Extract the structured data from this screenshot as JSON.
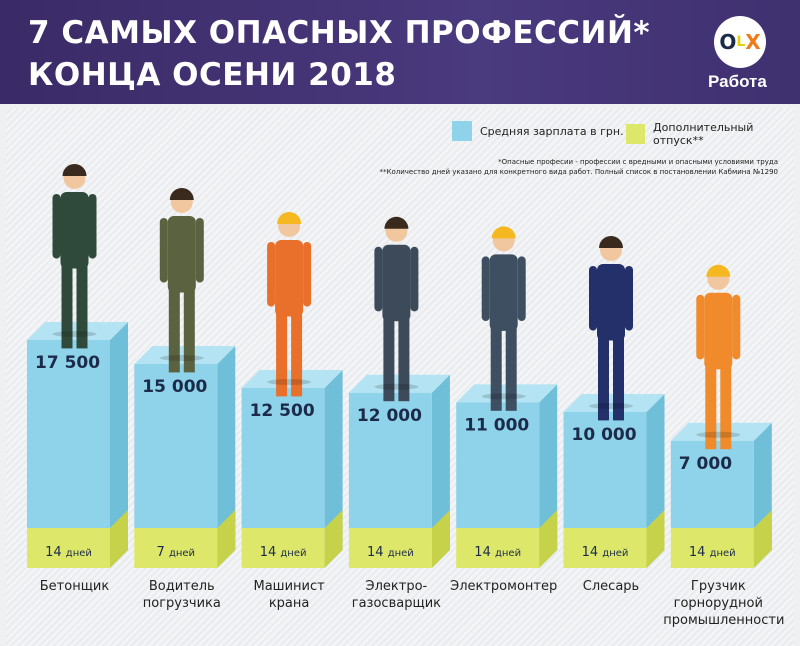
{
  "header": {
    "title_line1": "7 САМЫХ ОПАСНЫХ ПРОФЕССИЙ*",
    "title_line2": "КОНЦА ОСЕНИ 2018",
    "logo_o": "O",
    "logo_l": "L",
    "logo_x": "X",
    "logo_sub": "Работа"
  },
  "legend": {
    "salary": "Средняя зарплата в грн.",
    "vacation": "Дополнительный отпуск**"
  },
  "notes": {
    "n1": "*Опасные професии - професcии с вредными и опасными условиями труда",
    "n2": "**Количество дней указано для конкретного вида работ. Полный список в постановлении Кабмина №1290"
  },
  "colors": {
    "salary": "#8ed3ea",
    "vacation": "#dde86a"
  },
  "chart_data": {
    "type": "bar",
    "categories": [
      "Бетонщик",
      "Водитель погрузчика",
      "Машинист крана",
      "Электро-газосварщик",
      "Электромонтер",
      "Слесарь",
      "Грузчик горнорудной промышленности"
    ],
    "series": [
      {
        "name": "Средняя зарплата в грн.",
        "values": [
          17500,
          15000,
          12500,
          12000,
          11000,
          10000,
          7000
        ],
        "labels": [
          "17 500",
          "15 000",
          "12 500",
          "12 000",
          "11 000",
          "10 000",
          "7 000"
        ]
      },
      {
        "name": "Дополнительный отпуск**",
        "values": [
          14,
          7,
          14,
          14,
          14,
          14,
          14
        ],
        "unit": "дней"
      }
    ],
    "outfits": [
      "#2f4a3a",
      "#5b6240",
      "#e8702a",
      "#3c4a5a",
      "#3e4f62",
      "#23306a",
      "#f08a2a"
    ]
  }
}
